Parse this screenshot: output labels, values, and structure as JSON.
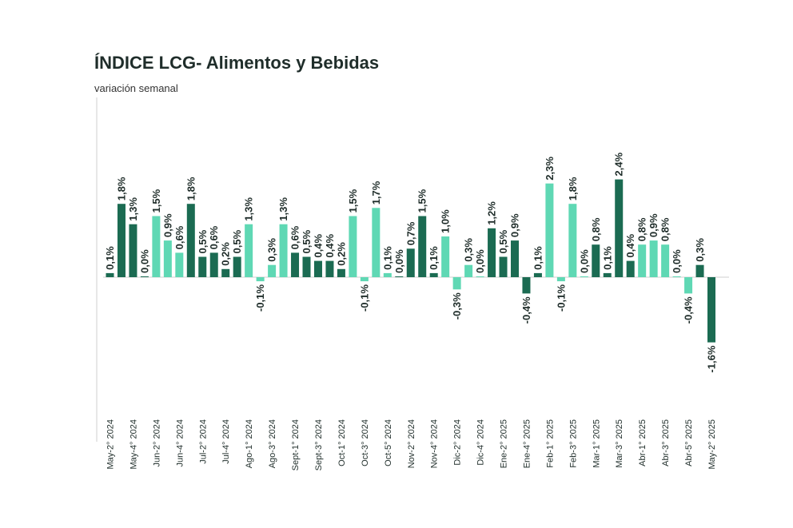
{
  "chart_data": {
    "type": "bar",
    "title": "ÍNDICE LCG- Alimentos y Bebidas",
    "subtitle": "variación semanal",
    "colors": {
      "dark": "#1b6b52",
      "light": "#5fd8b4",
      "axis": "#cfcfcf"
    },
    "bars": [
      {
        "value": 0.1,
        "label": "0,1%",
        "tick": "May-2° 2024",
        "shade": "dark"
      },
      {
        "value": 1.8,
        "label": "1,8%",
        "tick": "",
        "shade": "dark"
      },
      {
        "value": 1.3,
        "label": "1,3%",
        "tick": "May-4° 2024",
        "shade": "dark"
      },
      {
        "value": 0.0,
        "label": "0,0%",
        "tick": "",
        "shade": "dark"
      },
      {
        "value": 1.5,
        "label": "1,5%",
        "tick": "Jun-2° 2024",
        "shade": "light"
      },
      {
        "value": 0.9,
        "label": "0,9%",
        "tick": "",
        "shade": "light"
      },
      {
        "value": 0.6,
        "label": "0,6%",
        "tick": "Jun-4° 2024",
        "shade": "light"
      },
      {
        "value": 1.8,
        "label": "1,8%",
        "tick": "",
        "shade": "dark"
      },
      {
        "value": 0.5,
        "label": "0,5%",
        "tick": "Jul-2° 2024",
        "shade": "dark"
      },
      {
        "value": 0.6,
        "label": "0,6%",
        "tick": "",
        "shade": "dark"
      },
      {
        "value": 0.2,
        "label": "0,2%",
        "tick": "Jul-4° 2024",
        "shade": "dark"
      },
      {
        "value": 0.5,
        "label": "0,5%",
        "tick": "",
        "shade": "dark"
      },
      {
        "value": 1.3,
        "label": "1,3%",
        "tick": "Ago-1° 2024",
        "shade": "light"
      },
      {
        "value": -0.1,
        "label": "-0,1%",
        "tick": "",
        "shade": "light"
      },
      {
        "value": 0.3,
        "label": "0,3%",
        "tick": "Ago-3° 2024",
        "shade": "light"
      },
      {
        "value": 1.3,
        "label": "1,3%",
        "tick": "",
        "shade": "light"
      },
      {
        "value": 0.6,
        "label": "0,6%",
        "tick": "Sept-1° 2024",
        "shade": "dark"
      },
      {
        "value": 0.5,
        "label": "0,5%",
        "tick": "",
        "shade": "dark"
      },
      {
        "value": 0.4,
        "label": "0,4%",
        "tick": "Sept-3° 2024",
        "shade": "dark"
      },
      {
        "value": 0.4,
        "label": "0,4%",
        "tick": "",
        "shade": "dark"
      },
      {
        "value": 0.2,
        "label": "0,2%",
        "tick": "Oct-1° 2024",
        "shade": "dark"
      },
      {
        "value": 1.5,
        "label": "1,5%",
        "tick": "",
        "shade": "light"
      },
      {
        "value": -0.1,
        "label": "-0,1%",
        "tick": "Oct-3° 2024",
        "shade": "light"
      },
      {
        "value": 1.7,
        "label": "1,7%",
        "tick": "",
        "shade": "light"
      },
      {
        "value": 0.1,
        "label": "0,1%",
        "tick": "Oct-5° 2024",
        "shade": "light"
      },
      {
        "value": 0.0,
        "label": "0,0%",
        "tick": "",
        "shade": "dark"
      },
      {
        "value": 0.7,
        "label": "0,7%",
        "tick": "Nov-2° 2024",
        "shade": "dark"
      },
      {
        "value": 1.5,
        "label": "1,5%",
        "tick": "",
        "shade": "dark"
      },
      {
        "value": 0.1,
        "label": "0,1%",
        "tick": "Nov-4° 2024",
        "shade": "dark"
      },
      {
        "value": 1.0,
        "label": "1,0%",
        "tick": "",
        "shade": "light"
      },
      {
        "value": -0.3,
        "label": "-0,3%",
        "tick": "Dic-2° 2024",
        "shade": "light"
      },
      {
        "value": 0.3,
        "label": "0,3%",
        "tick": "",
        "shade": "light"
      },
      {
        "value": 0.0,
        "label": "0,0%",
        "tick": "Dic-4° 2024",
        "shade": "light"
      },
      {
        "value": 1.2,
        "label": "1,2%",
        "tick": "",
        "shade": "dark"
      },
      {
        "value": 0.5,
        "label": "0,5%",
        "tick": "Ene-2° 2025",
        "shade": "dark"
      },
      {
        "value": 0.9,
        "label": "0,9%",
        "tick": "",
        "shade": "dark"
      },
      {
        "value": -0.4,
        "label": "-0,4%",
        "tick": "Ene-4° 2025",
        "shade": "dark"
      },
      {
        "value": 0.1,
        "label": "0,1%",
        "tick": "",
        "shade": "dark"
      },
      {
        "value": 2.3,
        "label": "2,3%",
        "tick": "Feb-1° 2025",
        "shade": "light"
      },
      {
        "value": -0.1,
        "label": "-0,1%",
        "tick": "",
        "shade": "light"
      },
      {
        "value": 1.8,
        "label": "1,8%",
        "tick": "Feb-3° 2025",
        "shade": "light"
      },
      {
        "value": 0.0,
        "label": "0,0%",
        "tick": "",
        "shade": "light"
      },
      {
        "value": 0.8,
        "label": "0,8%",
        "tick": "Mar-1° 2025",
        "shade": "dark"
      },
      {
        "value": 0.1,
        "label": "0,1%",
        "tick": "",
        "shade": "dark"
      },
      {
        "value": 2.4,
        "label": "2,4%",
        "tick": "Mar-3° 2025",
        "shade": "dark"
      },
      {
        "value": 0.4,
        "label": "0,4%",
        "tick": "",
        "shade": "dark"
      },
      {
        "value": 0.8,
        "label": "0,8%",
        "tick": "Abr-1° 2025",
        "shade": "light"
      },
      {
        "value": 0.9,
        "label": "0,9%",
        "tick": "",
        "shade": "light"
      },
      {
        "value": 0.8,
        "label": "0,8%",
        "tick": "Abr-3° 2025",
        "shade": "light"
      },
      {
        "value": 0.0,
        "label": "0,0%",
        "tick": "",
        "shade": "light"
      },
      {
        "value": -0.4,
        "label": "-0,4%",
        "tick": "Abr-5° 2025",
        "shade": "light"
      },
      {
        "value": 0.3,
        "label": "0,3%",
        "tick": "",
        "shade": "dark"
      },
      {
        "value": -1.6,
        "label": "-1,6%",
        "tick": "May-2° 2025",
        "shade": "dark"
      }
    ],
    "ylim": [
      -1.6,
      2.4
    ],
    "grid": false,
    "legend": "none"
  }
}
